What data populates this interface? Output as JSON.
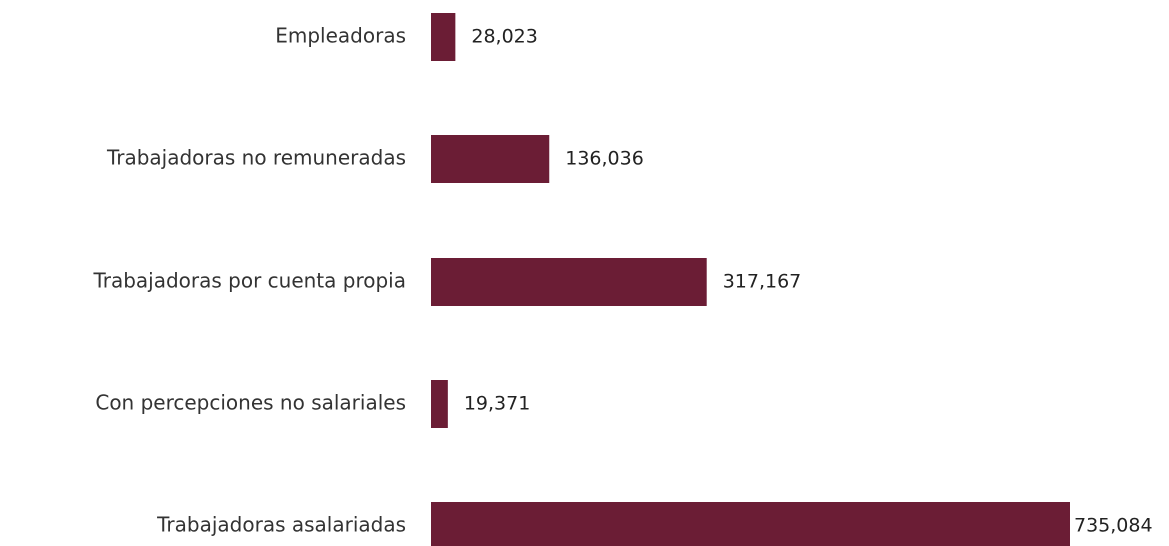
{
  "chart_data": {
    "type": "bar",
    "orientation": "horizontal",
    "categories": [
      "Empleadoras",
      "Trabajadoras no remuneradas",
      "Trabajadoras por cuenta propia",
      "Con percepciones no salariales",
      "Trabajadoras asalariadas"
    ],
    "values": [
      28023,
      136036,
      317167,
      19371,
      735084
    ],
    "value_labels": [
      "28,023",
      "136,036",
      "317,167",
      "19,371",
      "735,084"
    ],
    "title": "",
    "xlabel": "",
    "ylabel": "",
    "xlim": [
      0,
      735084
    ],
    "grid": false,
    "legend": "none",
    "bar_color": "#6b1d35"
  }
}
